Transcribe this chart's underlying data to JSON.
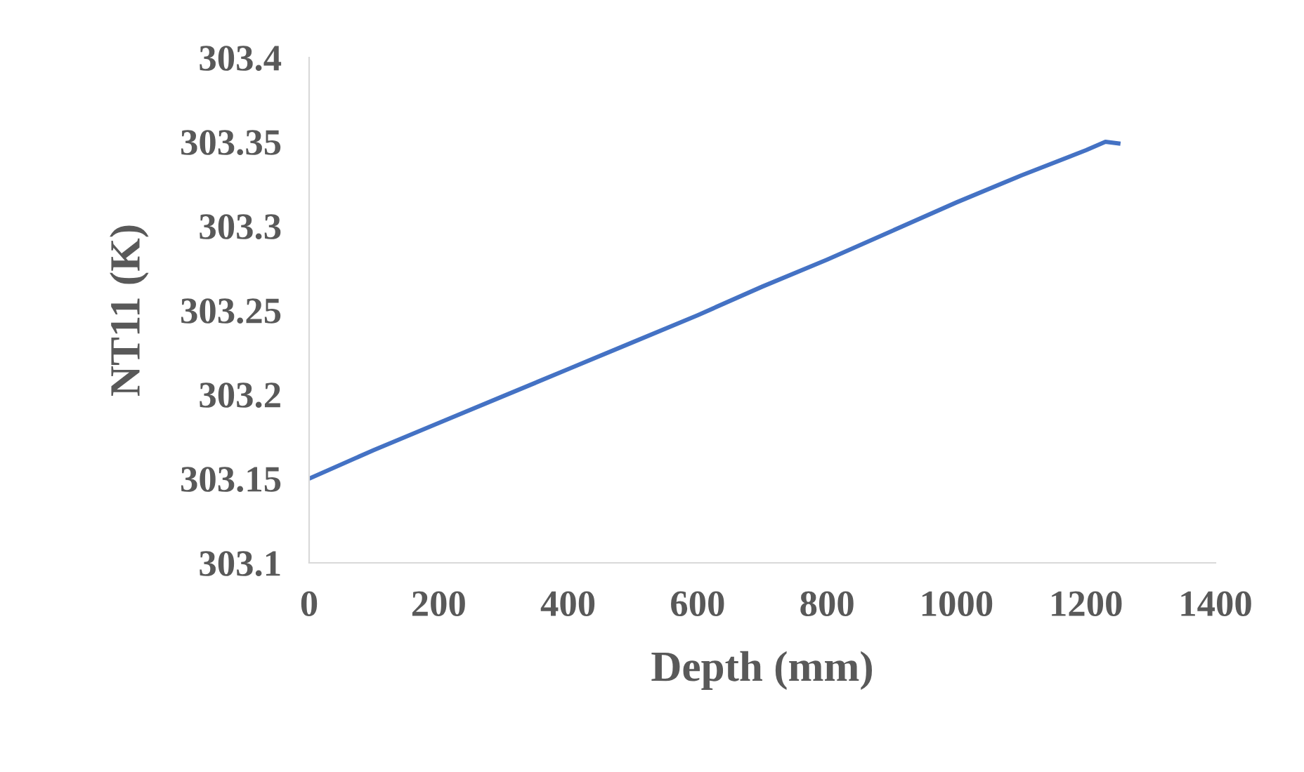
{
  "chart_data": {
    "type": "line",
    "xlabel": "Depth (mm)",
    "ylabel": "NT11 (K)",
    "series": [
      {
        "color": "#4472c4",
        "x": [
          0,
          100,
          200,
          300,
          400,
          500,
          600,
          700,
          800,
          900,
          1000,
          1100,
          1200,
          1230,
          1250
        ],
        "values": [
          303.15,
          303.167,
          303.183,
          303.199,
          303.215,
          303.231,
          303.247,
          303.264,
          303.28,
          303.297,
          303.314,
          303.33,
          303.345,
          303.35,
          303.349
        ]
      }
    ],
    "xlim": [
      0,
      1400
    ],
    "xticks": [
      0,
      200,
      400,
      600,
      800,
      1000,
      1200,
      1400
    ],
    "ylim": [
      303.1,
      303.4
    ],
    "yticks": [
      303.1,
      303.15,
      303.2,
      303.25,
      303.3,
      303.35,
      303.4
    ],
    "grid": false,
    "marker": "none",
    "line_style": "solid"
  }
}
